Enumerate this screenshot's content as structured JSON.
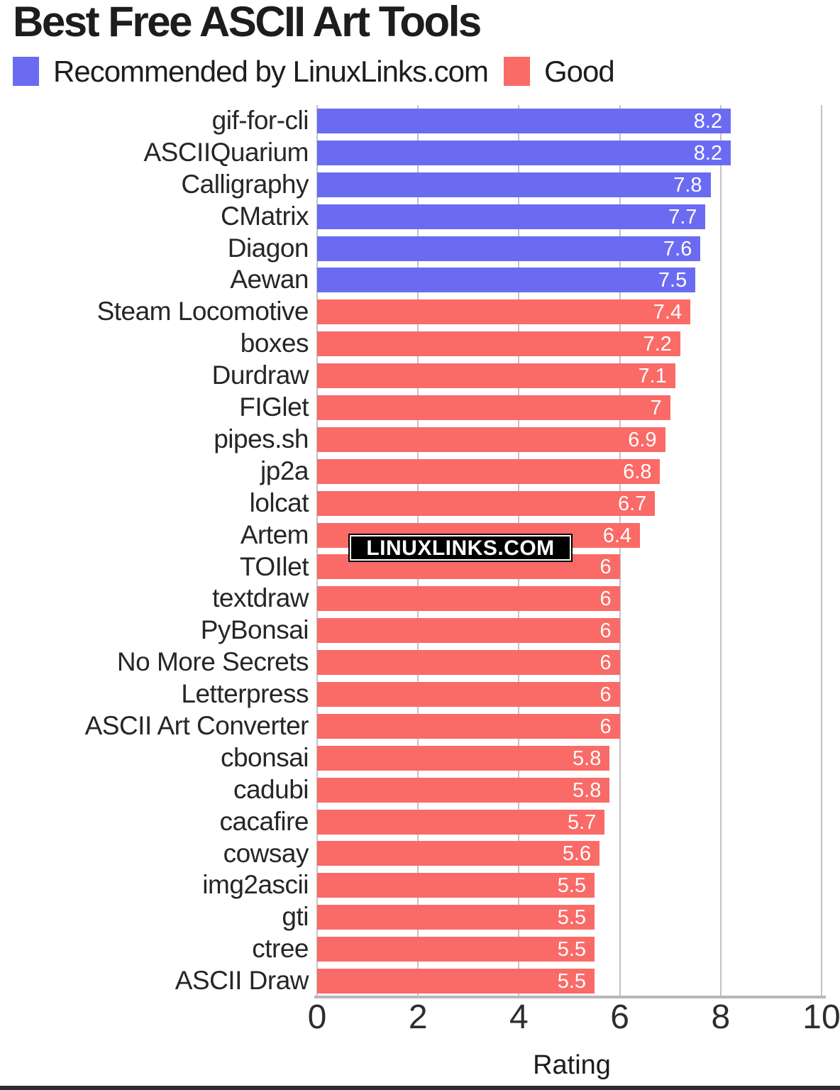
{
  "title": "Best Free ASCII Art Tools",
  "legend": [
    {
      "label": "Recommended by LinuxLinks.com",
      "color": "#6b6bf2"
    },
    {
      "label": "Good",
      "color": "#fa6a66"
    }
  ],
  "watermark": "LINUXLINKS.COM",
  "chart_data": {
    "type": "bar",
    "orientation": "horizontal",
    "title": "Best Free ASCII Art Tools",
    "xlabel": "Rating",
    "ylabel": "",
    "xlim": [
      0,
      10
    ],
    "xticks": [
      "0",
      "2",
      "4",
      "6",
      "8",
      "10"
    ],
    "xtick_values": [
      0,
      2,
      4,
      6,
      8,
      10
    ],
    "grid": true,
    "legend_position": "top",
    "series": [
      {
        "name": "Recommended by LinuxLinks.com",
        "color": "#6b6bf2"
      },
      {
        "name": "Good",
        "color": "#fa6a66"
      }
    ],
    "bars": [
      {
        "label": "gif-for-cli",
        "value": 8.2,
        "display": "8.2",
        "series": 0
      },
      {
        "label": "ASCIIQuarium",
        "value": 8.2,
        "display": "8.2",
        "series": 0
      },
      {
        "label": "Calligraphy",
        "value": 7.8,
        "display": "7.8",
        "series": 0
      },
      {
        "label": "CMatrix",
        "value": 7.7,
        "display": "7.7",
        "series": 0
      },
      {
        "label": "Diagon",
        "value": 7.6,
        "display": "7.6",
        "series": 0
      },
      {
        "label": "Aewan",
        "value": 7.5,
        "display": "7.5",
        "series": 0
      },
      {
        "label": "Steam Locomotive",
        "value": 7.4,
        "display": "7.4",
        "series": 1
      },
      {
        "label": "boxes",
        "value": 7.2,
        "display": "7.2",
        "series": 1
      },
      {
        "label": "Durdraw",
        "value": 7.1,
        "display": "7.1",
        "series": 1
      },
      {
        "label": "FIGlet",
        "value": 7,
        "display": "7",
        "series": 1
      },
      {
        "label": "pipes.sh",
        "value": 6.9,
        "display": "6.9",
        "series": 1
      },
      {
        "label": "jp2a",
        "value": 6.8,
        "display": "6.8",
        "series": 1
      },
      {
        "label": "lolcat",
        "value": 6.7,
        "display": "6.7",
        "series": 1
      },
      {
        "label": "Artem",
        "value": 6.4,
        "display": "6.4",
        "series": 1
      },
      {
        "label": "TOIlet",
        "value": 6,
        "display": "6",
        "series": 1
      },
      {
        "label": "textdraw",
        "value": 6,
        "display": "6",
        "series": 1
      },
      {
        "label": "PyBonsai",
        "value": 6,
        "display": "6",
        "series": 1
      },
      {
        "label": "No More Secrets",
        "value": 6,
        "display": "6",
        "series": 1
      },
      {
        "label": "Letterpress",
        "value": 6,
        "display": "6",
        "series": 1
      },
      {
        "label": "ASCII Art Converter",
        "value": 6,
        "display": "6",
        "series": 1
      },
      {
        "label": "cbonsai",
        "value": 5.8,
        "display": "5.8",
        "series": 1
      },
      {
        "label": "cadubi",
        "value": 5.8,
        "display": "5.8",
        "series": 1
      },
      {
        "label": "cacafire",
        "value": 5.7,
        "display": "5.7",
        "series": 1
      },
      {
        "label": "cowsay",
        "value": 5.6,
        "display": "5.6",
        "series": 1
      },
      {
        "label": "img2ascii",
        "value": 5.5,
        "display": "5.5",
        "series": 1
      },
      {
        "label": "gti",
        "value": 5.5,
        "display": "5.5",
        "series": 1
      },
      {
        "label": "ctree",
        "value": 5.5,
        "display": "5.5",
        "series": 1
      },
      {
        "label": "ASCII Draw",
        "value": 5.5,
        "display": "5.5",
        "series": 1
      }
    ]
  }
}
